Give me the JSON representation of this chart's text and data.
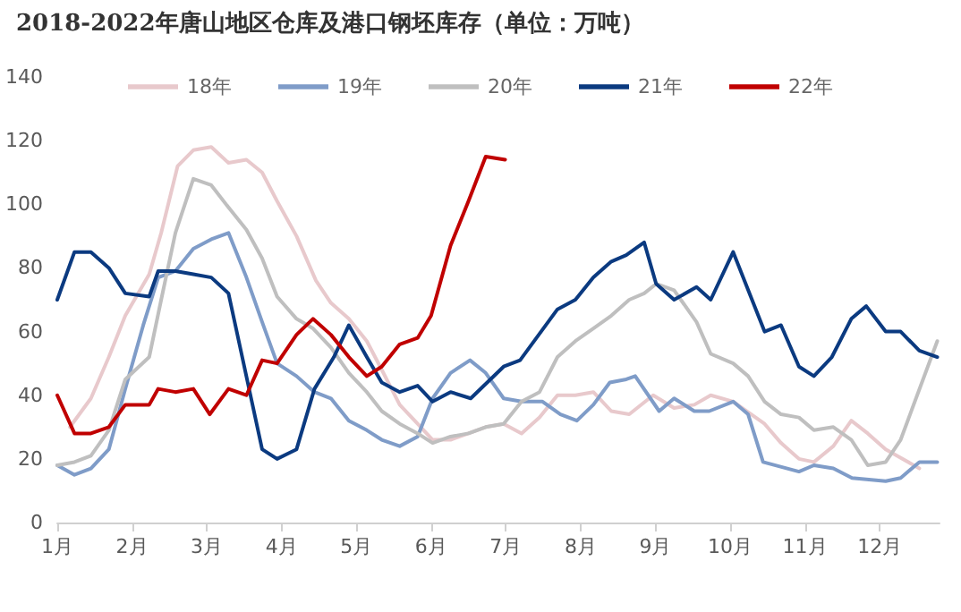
{
  "chart_data": {
    "type": "line",
    "title": "2018-2022年唐山地区仓库及港口钢坯库存（单位：万吨）",
    "xlim": [
      1,
      12.8
    ],
    "xticks": [
      {
        "value": 1,
        "label": "1月"
      },
      {
        "value": 2,
        "label": "2月"
      },
      {
        "value": 3,
        "label": "3月"
      },
      {
        "value": 4,
        "label": "4月"
      },
      {
        "value": 5,
        "label": "5月"
      },
      {
        "value": 6,
        "label": "6月"
      },
      {
        "value": 7,
        "label": "7月"
      },
      {
        "value": 8,
        "label": "8月"
      },
      {
        "value": 9,
        "label": "9月"
      },
      {
        "value": 10,
        "label": "10月"
      },
      {
        "value": 11,
        "label": "11月"
      },
      {
        "value": 12,
        "label": "12月"
      }
    ],
    "ylim": [
      0,
      140
    ],
    "yticks": [
      0,
      20,
      40,
      60,
      80,
      100,
      120,
      140
    ],
    "grid": false,
    "legend": "top",
    "marker": "none",
    "line_style": "solid",
    "series": [
      {
        "name": "18年",
        "color": "#e8c9cc",
        "x": [
          1.17,
          1.45,
          1.69,
          1.91,
          2.23,
          2.39,
          2.61,
          2.82,
          3.06,
          3.29,
          3.53,
          3.74,
          3.94,
          4.2,
          4.46,
          4.66,
          4.9,
          5.14,
          5.34,
          5.58,
          5.82,
          6.02,
          6.26,
          6.5,
          6.73,
          6.97,
          7.21,
          7.45,
          7.69,
          7.93,
          8.17,
          8.41,
          8.65,
          8.97,
          9.25,
          9.52,
          9.74,
          10.04,
          10.46,
          10.68,
          10.92,
          11.12,
          11.38,
          11.62,
          11.84,
          12.08,
          12.53
        ],
        "values": [
          30,
          39,
          52,
          65,
          78,
          91,
          112,
          117,
          118,
          113,
          114,
          110,
          101,
          90,
          76,
          69,
          64,
          57,
          48,
          37,
          31,
          26,
          26,
          28,
          30,
          31,
          28,
          33,
          40,
          40,
          41,
          35,
          34,
          40,
          36,
          37,
          40,
          38,
          31,
          25,
          20,
          19,
          24,
          32,
          28,
          23,
          17
        ]
      },
      {
        "name": "19年",
        "color": "#7f9cc8",
        "x": [
          1,
          1.23,
          1.45,
          1.69,
          1.91,
          2.15,
          2.35,
          2.58,
          2.82,
          3.06,
          3.29,
          3.53,
          3.74,
          3.94,
          4.2,
          4.44,
          4.66,
          4.9,
          5.14,
          5.34,
          5.58,
          5.82,
          6.02,
          6.26,
          6.52,
          6.73,
          6.97,
          7.21,
          7.49,
          7.73,
          7.95,
          8.17,
          8.39,
          8.61,
          8.73,
          9.05,
          9.25,
          9.52,
          9.72,
          10.04,
          10.24,
          10.44,
          10.92,
          11.12,
          11.38,
          11.63,
          12.08,
          12.28,
          12.53,
          12.77
        ],
        "values": [
          18,
          15,
          17,
          23,
          42,
          62,
          77,
          79,
          86,
          89,
          91,
          77,
          63,
          50,
          46,
          41,
          39,
          32,
          29,
          26,
          24,
          27,
          39,
          47,
          51,
          47,
          39,
          38,
          38,
          34,
          32,
          37,
          44,
          45,
          46,
          35,
          39,
          35,
          35,
          38,
          34,
          19,
          16,
          18,
          17,
          14,
          13,
          14,
          19,
          19
        ]
      },
      {
        "name": "20年",
        "color": "#bfbfbf",
        "x": [
          1,
          1.23,
          1.45,
          1.69,
          1.91,
          2.23,
          2.39,
          2.58,
          2.82,
          3.06,
          3.29,
          3.53,
          3.74,
          3.94,
          4.2,
          4.42,
          4.66,
          4.9,
          5.14,
          5.34,
          5.58,
          5.82,
          6.02,
          6.26,
          6.5,
          6.73,
          6.97,
          7.21,
          7.45,
          7.69,
          7.93,
          8.17,
          8.41,
          8.65,
          8.85,
          9.01,
          9.25,
          9.55,
          9.74,
          10.04,
          10.24,
          10.46,
          10.68,
          10.92,
          11.12,
          11.38,
          11.62,
          11.84,
          12.08,
          12.28,
          12.77
        ],
        "values": [
          18,
          19,
          21,
          29,
          45,
          52,
          70,
          91,
          108,
          106,
          99,
          92,
          83,
          71,
          64,
          61,
          55,
          47,
          41,
          35,
          31,
          28,
          25,
          27,
          28,
          30,
          31,
          38,
          41,
          52,
          57,
          61,
          65,
          70,
          72,
          75,
          73,
          63,
          53,
          50,
          46,
          38,
          34,
          33,
          29,
          30,
          26,
          18,
          19,
          26,
          57
        ]
      },
      {
        "name": "21年",
        "color": "#0b3a80",
        "x": [
          1,
          1.23,
          1.45,
          1.69,
          1.91,
          2.23,
          2.35,
          2.58,
          2.82,
          3.06,
          3.29,
          3.74,
          3.94,
          4.2,
          4.44,
          4.7,
          4.9,
          5.14,
          5.34,
          5.58,
          5.82,
          6.02,
          6.26,
          6.53,
          6.97,
          7.19,
          7.69,
          7.93,
          8.17,
          8.41,
          8.61,
          8.85,
          9.01,
          9.25,
          9.55,
          9.74,
          10.04,
          10.46,
          10.68,
          10.92,
          11.12,
          11.36,
          11.62,
          11.82,
          12.08,
          12.28,
          12.53,
          12.77
        ],
        "values": [
          70,
          85,
          85,
          80,
          72,
          71,
          79,
          79,
          78,
          77,
          72,
          23,
          20,
          23,
          42,
          52,
          62,
          52,
          44,
          41,
          43,
          38,
          41,
          39,
          49,
          51,
          67,
          70,
          77,
          82,
          84,
          88,
          75,
          70,
          74,
          70,
          85,
          60,
          62,
          49,
          46,
          52,
          64,
          68,
          60,
          60,
          54,
          52
        ]
      },
      {
        "name": "22年",
        "color": "#c00000",
        "x": [
          1,
          1.23,
          1.45,
          1.69,
          1.91,
          2.23,
          2.35,
          2.58,
          2.82,
          3.04,
          3.29,
          3.53,
          3.74,
          3.94,
          4.2,
          4.42,
          4.66,
          4.9,
          5.14,
          5.34,
          5.58,
          5.82,
          6.0,
          6.26,
          6.5,
          6.73,
          6.99
        ],
        "values": [
          40,
          28,
          28,
          30,
          37,
          37,
          42,
          41,
          42,
          34,
          42,
          40,
          51,
          50,
          59,
          64,
          59,
          52,
          46,
          49,
          56,
          58,
          65,
          87,
          101,
          115,
          114
        ]
      }
    ]
  }
}
